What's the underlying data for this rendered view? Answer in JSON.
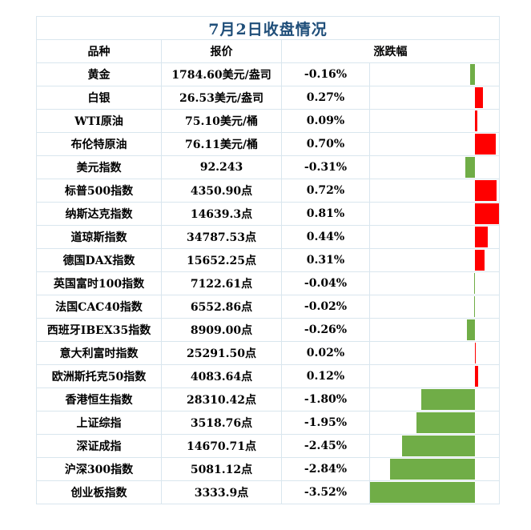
{
  "title": "7月2日收盘情况",
  "headers": {
    "name": "品种",
    "price": "报价",
    "change": "涨跌幅"
  },
  "colors": {
    "up": "#ff0000",
    "down": "#70ad47",
    "title": "#1f4e79"
  },
  "rows": [
    {
      "name": "黄金",
      "price": "1784.60美元/盎司",
      "change": "-0.16%",
      "pct": -0.16
    },
    {
      "name": "白银",
      "price": "26.53美元/盎司",
      "change": "0.27%",
      "pct": 0.27
    },
    {
      "name": "WTI原油",
      "price": "75.10美元/桶",
      "change": "0.09%",
      "pct": 0.09
    },
    {
      "name": "布伦特原油",
      "price": "76.11美元/桶",
      "change": "0.70%",
      "pct": 0.7
    },
    {
      "name": "美元指数",
      "price": "92.243",
      "change": "-0.31%",
      "pct": -0.31
    },
    {
      "name": "标普500指数",
      "price": "4350.90点",
      "change": "0.72%",
      "pct": 0.72
    },
    {
      "name": "纳斯达克指数",
      "price": "14639.3点",
      "change": "0.81%",
      "pct": 0.81
    },
    {
      "name": "道琼斯指数",
      "price": "34787.53点",
      "change": "0.44%",
      "pct": 0.44
    },
    {
      "name": "德国DAX指数",
      "price": "15652.25点",
      "change": "0.31%",
      "pct": 0.31
    },
    {
      "name": "英国富时100指数",
      "price": "7122.61点",
      "change": "-0.04%",
      "pct": -0.04
    },
    {
      "name": "法国CAC40指数",
      "price": "6552.86点",
      "change": "-0.02%",
      "pct": -0.02
    },
    {
      "name": "西班牙IBEX35指数",
      "price": "8909.00点",
      "change": "-0.26%",
      "pct": -0.26
    },
    {
      "name": "意大利富时指数",
      "price": "25291.50点",
      "change": "0.02%",
      "pct": 0.02
    },
    {
      "name": "欧洲斯托克50指数",
      "price": "4083.64点",
      "change": "0.12%",
      "pct": 0.12
    },
    {
      "name": "香港恒生指数",
      "price": "28310.42点",
      "change": "-1.80%",
      "pct": -1.8
    },
    {
      "name": "上证综指",
      "price": "3518.76点",
      "change": "-1.95%",
      "pct": -1.95
    },
    {
      "name": "深证成指",
      "price": "14670.71点",
      "change": "-2.45%",
      "pct": -2.45
    },
    {
      "name": "沪深300指数",
      "price": "5081.12点",
      "change": "-2.84%",
      "pct": -2.84
    },
    {
      "name": "创业板指数",
      "price": "3333.9点",
      "change": "-3.52%",
      "pct": -3.52
    }
  ]
}
